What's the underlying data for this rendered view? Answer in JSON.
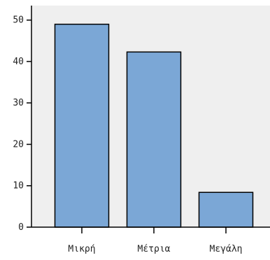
{
  "chart_data": {
    "type": "bar",
    "categories": [
      "Μικρή",
      "Μέτρια",
      "Μεγάλη"
    ],
    "values": [
      49,
      42.3,
      8.4
    ],
    "ylim": [
      0,
      53.5
    ],
    "yticks": [
      0,
      10,
      20,
      30,
      40,
      50
    ],
    "grid": false,
    "colors": {
      "bar_fill": "#7ba7d6",
      "bar_stroke": "#000000",
      "plot_bg": "#efefef"
    }
  }
}
